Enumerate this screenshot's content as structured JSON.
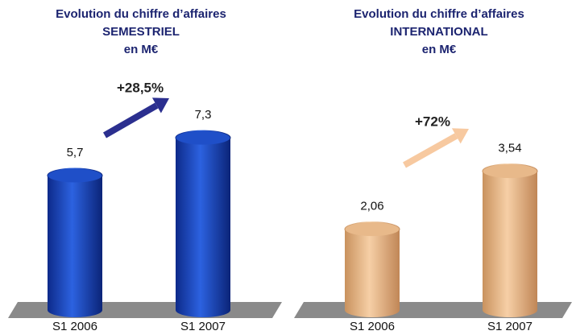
{
  "chart_data": [
    {
      "type": "bar",
      "title": [
        "Evolution du chiffre d’affaires",
        "SEMESTRIEL",
        "en M€"
      ],
      "categories": [
        "S1 2006",
        "S1 2007"
      ],
      "values": [
        5.7,
        7.3
      ],
      "value_labels": [
        "5,7",
        "7,3"
      ],
      "color": "#1f4fc8",
      "annotation": "+28,5%",
      "arrow_color": "#2b2f8f"
    },
    {
      "type": "bar",
      "title": [
        "Evolution du chiffre d’affaires",
        "INTERNATIONAL",
        "en M€"
      ],
      "categories": [
        "S1 2006",
        "S1 2007"
      ],
      "values": [
        2.06,
        3.54
      ],
      "value_labels": [
        "2,06",
        "3,54"
      ],
      "color": "#e8b98a",
      "annotation": "+72%",
      "arrow_color": "#f7c9a0"
    }
  ]
}
